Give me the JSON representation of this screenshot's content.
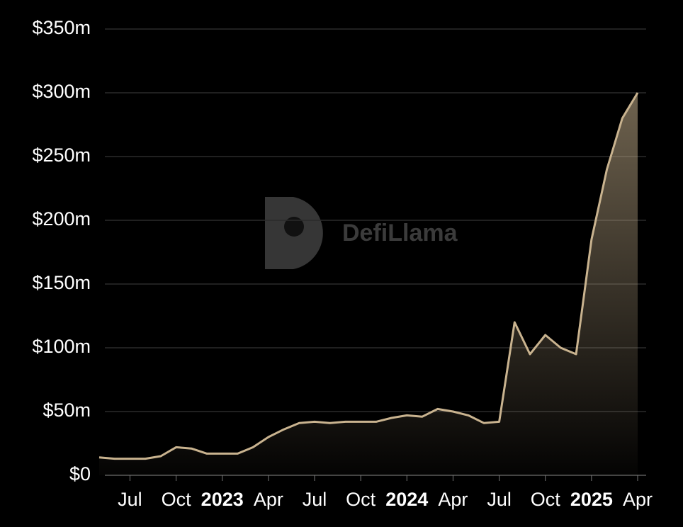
{
  "watermark": "DefiLlama",
  "chart_data": {
    "type": "line",
    "x": [
      "2022-05",
      "2022-06",
      "2022-07",
      "2022-08",
      "2022-09",
      "2022-10",
      "2022-11",
      "2022-12",
      "2023-01",
      "2023-02",
      "2023-03",
      "2023-04",
      "2023-05",
      "2023-06",
      "2023-07",
      "2023-08",
      "2023-09",
      "2023-10",
      "2023-11",
      "2023-12",
      "2024-01",
      "2024-02",
      "2024-03",
      "2024-04",
      "2024-05",
      "2024-06",
      "2024-07",
      "2024-08",
      "2024-09",
      "2024-10",
      "2024-11",
      "2024-12",
      "2025-01",
      "2025-02",
      "2025-03",
      "2025-04"
    ],
    "series": [
      {
        "color": "#c9b38f",
        "values": [
          14,
          13,
          13,
          13,
          15,
          22,
          21,
          17,
          17,
          17,
          22,
          30,
          36,
          41,
          42,
          41,
          42,
          42,
          42,
          45,
          47,
          46,
          52,
          50,
          47,
          41,
          42,
          120,
          95,
          110,
          100,
          95,
          185,
          240,
          280,
          300
        ]
      }
    ],
    "xlim": [
      "2022-05",
      "2025-04"
    ],
    "xticks": [
      {
        "value": "2022-07",
        "label": "Jul"
      },
      {
        "value": "2022-10",
        "label": "Oct"
      },
      {
        "value": "2023-01",
        "label": "2023"
      },
      {
        "value": "2023-04",
        "label": "Apr"
      },
      {
        "value": "2023-07",
        "label": "Jul"
      },
      {
        "value": "2023-10",
        "label": "Oct"
      },
      {
        "value": "2024-01",
        "label": "2024"
      },
      {
        "value": "2024-04",
        "label": "Apr"
      },
      {
        "value": "2024-07",
        "label": "Jul"
      },
      {
        "value": "2024-10",
        "label": "Oct"
      },
      {
        "value": "2025-01",
        "label": "2025"
      },
      {
        "value": "2025-04",
        "label": "Apr"
      }
    ],
    "ylim": [
      0,
      350
    ],
    "yticks": [
      {
        "value": 0,
        "label": "$0"
      },
      {
        "value": 50,
        "label": "$50m"
      },
      {
        "value": 100,
        "label": "$100m"
      },
      {
        "value": 150,
        "label": "$150m"
      },
      {
        "value": 200,
        "label": "$200m"
      },
      {
        "value": 250,
        "label": "$250m"
      },
      {
        "value": 300,
        "label": "$300m"
      },
      {
        "value": 350,
        "label": "$350m"
      }
    ],
    "grid": true
  }
}
